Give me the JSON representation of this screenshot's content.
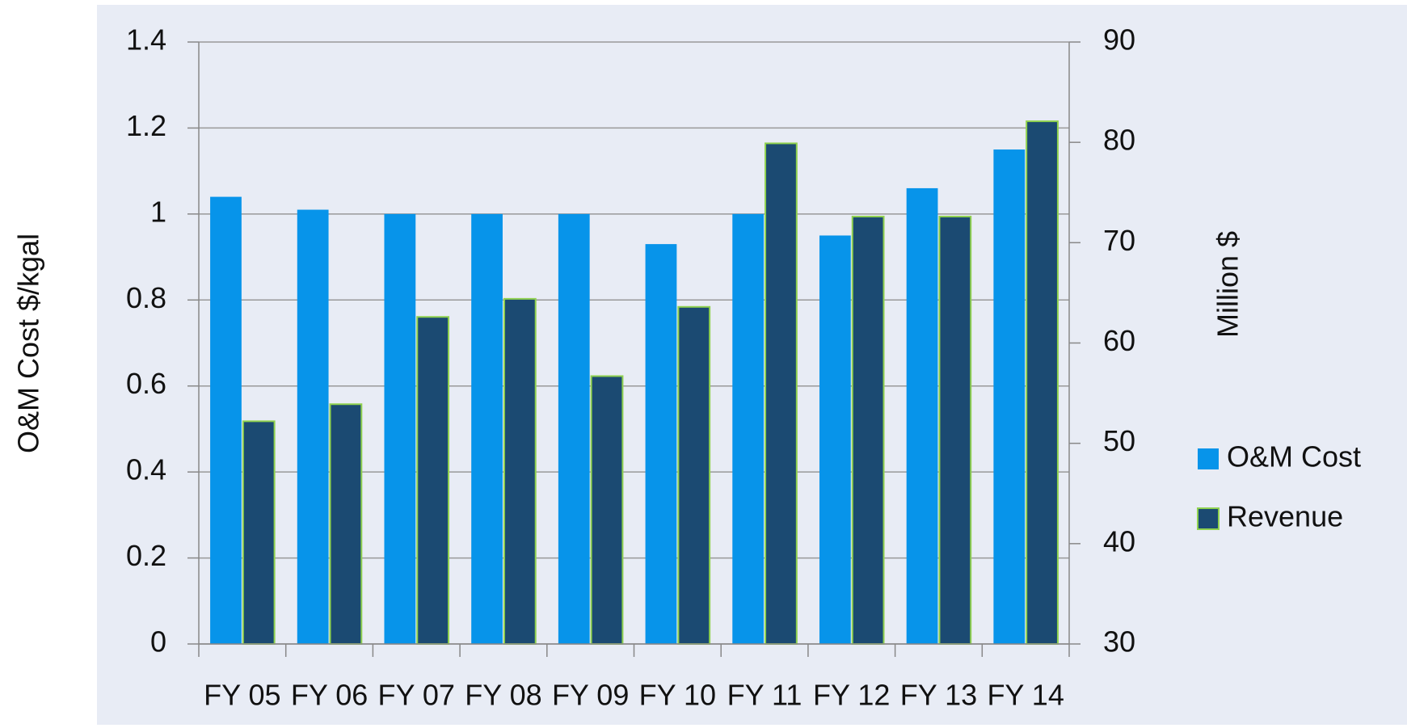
{
  "chart_data": {
    "type": "bar",
    "categories": [
      "FY 05",
      "FY 06",
      "FY 07",
      "FY 08",
      "FY 09",
      "FY 10",
      "FY 11",
      "FY 12",
      "FY 13",
      "FY 14"
    ],
    "series": [
      {
        "name": "O&M Cost",
        "color": "#0794ea",
        "values": [
          1.04,
          1.01,
          1.0,
          1.0,
          1.0,
          0.93,
          1.0,
          0.95,
          1.06,
          1.15
        ]
      },
      {
        "name": "Revenue",
        "color": "#1b4a72",
        "axis": "y2",
        "values": [
          52.2,
          53.9,
          62.6,
          64.4,
          56.7,
          63.6,
          79.9,
          72.6,
          72.6,
          82.1
        ]
      }
    ],
    "ylabel": "O&M Cost $/kgal",
    "y2label": "Million $",
    "ylim": [
      0,
      1.4
    ],
    "yticks": [
      0,
      0.2,
      0.4,
      0.6,
      0.8,
      1,
      1.2,
      1.4
    ],
    "y2lim": [
      30,
      90
    ],
    "y2ticks": [
      30,
      40,
      50,
      60,
      70,
      80,
      90
    ],
    "grid": true,
    "legend": "right"
  }
}
